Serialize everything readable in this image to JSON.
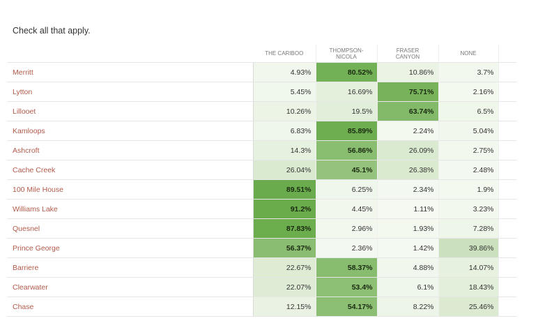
{
  "instruction": "Check  all that apply.",
  "columns": [
    {
      "label": "THE CARIBOO"
    },
    {
      "label": "THOMPSON-\nNICOLA"
    },
    {
      "label": "FRASER\nCANYON"
    },
    {
      "label": "NONE"
    }
  ],
  "rows": [
    {
      "label": "Merritt",
      "values": [
        "4.93%",
        "80.52%",
        "10.86%",
        "3.7%"
      ],
      "pct": [
        4.93,
        80.52,
        10.86,
        3.7
      ]
    },
    {
      "label": "Lytton",
      "values": [
        "5.45%",
        "16.69%",
        "75.71%",
        "2.16%"
      ],
      "pct": [
        5.45,
        16.69,
        75.71,
        2.16
      ]
    },
    {
      "label": "Lillooet",
      "values": [
        "10.26%",
        "19.5%",
        "63.74%",
        "6.5%"
      ],
      "pct": [
        10.26,
        19.5,
        63.74,
        6.5
      ]
    },
    {
      "label": "Kamloops",
      "values": [
        "6.83%",
        "85.89%",
        "2.24%",
        "5.04%"
      ],
      "pct": [
        6.83,
        85.89,
        2.24,
        5.04
      ]
    },
    {
      "label": "Ashcroft",
      "values": [
        "14.3%",
        "56.86%",
        "26.09%",
        "2.75%"
      ],
      "pct": [
        14.3,
        56.86,
        26.09,
        2.75
      ]
    },
    {
      "label": "Cache Creek",
      "values": [
        "26.04%",
        "45.1%",
        "26.38%",
        "2.48%"
      ],
      "pct": [
        26.04,
        45.1,
        26.38,
        2.48
      ]
    },
    {
      "label": "100 Mile House",
      "values": [
        "89.51%",
        "6.25%",
        "2.34%",
        "1.9%"
      ],
      "pct": [
        89.51,
        6.25,
        2.34,
        1.9
      ]
    },
    {
      "label": "Williams Lake",
      "values": [
        "91.2%",
        "4.45%",
        "1.11%",
        "3.23%"
      ],
      "pct": [
        91.2,
        4.45,
        1.11,
        3.23
      ]
    },
    {
      "label": "Quesnel",
      "values": [
        "87.83%",
        "2.96%",
        "1.93%",
        "7.28%"
      ],
      "pct": [
        87.83,
        2.96,
        1.93,
        7.28
      ]
    },
    {
      "label": "Prince George",
      "values": [
        "56.37%",
        "2.36%",
        "1.42%",
        "39.86%"
      ],
      "pct": [
        56.37,
        2.36,
        1.42,
        39.86
      ]
    },
    {
      "label": "Barriere",
      "values": [
        "22.67%",
        "58.37%",
        "4.88%",
        "14.07%"
      ],
      "pct": [
        22.67,
        58.37,
        4.88,
        14.07
      ]
    },
    {
      "label": "Clearwater",
      "values": [
        "22.07%",
        "53.4%",
        "6.1%",
        "18.43%"
      ],
      "pct": [
        22.07,
        53.4,
        6.1,
        18.43
      ]
    },
    {
      "label": "Chase",
      "values": [
        "12.15%",
        "54.17%",
        "8.22%",
        "25.46%"
      ],
      "pct": [
        12.15,
        54.17,
        8.22,
        25.46
      ]
    }
  ],
  "colors": {
    "heat_low": "#f6faf3",
    "heat_mid": "#c9e0ba",
    "heat_high": "#6aac4c",
    "row_label": "#b05a4a"
  }
}
